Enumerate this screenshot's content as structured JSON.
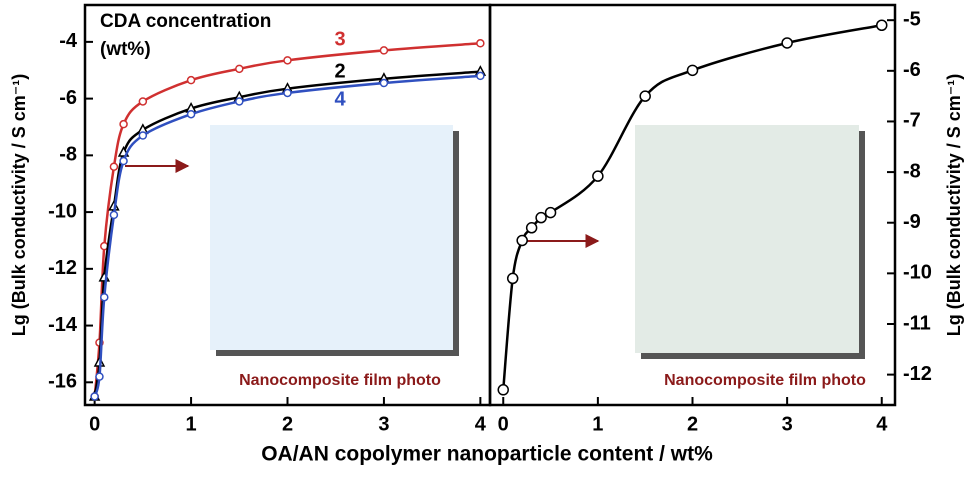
{
  "chart_data": [
    {
      "type": "line",
      "legend_title": "CDA concentration",
      "legend_subtitle": "(wt%)",
      "ylabel": "Lg (Bulk conductivity / S cm⁻¹)",
      "xlabel": "OA/AN copolymer nanoparticle content / wt%",
      "annotation": "Nanocomposite film photo",
      "x": [
        0,
        0.05,
        0.1,
        0.2,
        0.3,
        0.5,
        1,
        1.5,
        2,
        3,
        4
      ],
      "series": [
        {
          "name": "3",
          "color": "#d03030",
          "marker": "circle",
          "values": [
            -16.5,
            -14.6,
            -11.2,
            -8.4,
            -6.9,
            -6.1,
            -5.35,
            -4.95,
            -4.65,
            -4.3,
            -4.05
          ]
        },
        {
          "name": "2",
          "color": "#000000",
          "marker": "triangle",
          "values": [
            -16.5,
            -15.3,
            -12.3,
            -9.8,
            -7.9,
            -7.1,
            -6.35,
            -5.95,
            -5.65,
            -5.3,
            -5.05
          ]
        },
        {
          "name": "4",
          "color": "#3050c0",
          "marker": "circle",
          "values": [
            -16.5,
            -15.8,
            -13.0,
            -10.1,
            -8.2,
            -7.3,
            -6.55,
            -6.1,
            -5.8,
            -5.45,
            -5.2
          ]
        }
      ],
      "xlim": [
        -0.1,
        4.1
      ],
      "ylim": [
        -16.8,
        -2.7
      ],
      "xticks": [
        0,
        1,
        2,
        3,
        4
      ],
      "yticks": [
        -16,
        -14,
        -12,
        -10,
        -8,
        -6,
        -4
      ],
      "yaxis": "left"
    },
    {
      "type": "line",
      "ylabel": "Lg (Bulk conductivity / S cm⁻¹)",
      "annotation": "Nanocomposite film photo",
      "x": [
        0,
        0.1,
        0.2,
        0.3,
        0.4,
        0.5,
        1,
        1.5,
        2,
        3,
        4
      ],
      "series": [
        {
          "color": "#000000",
          "marker": "circle",
          "values": [
            -12.3,
            -10.1,
            -9.35,
            -9.1,
            -8.9,
            -8.8,
            -8.08,
            -6.5,
            -5.99,
            -5.45,
            -5.1
          ]
        }
      ],
      "xlim": [
        -0.14,
        4.14
      ],
      "ylim": [
        -12.6,
        -4.7
      ],
      "xticks": [
        0,
        1,
        2,
        3,
        4
      ],
      "yticks": [
        -12,
        -11,
        -10,
        -9,
        -8,
        -7,
        -6,
        -5
      ],
      "yaxis": "right"
    }
  ]
}
